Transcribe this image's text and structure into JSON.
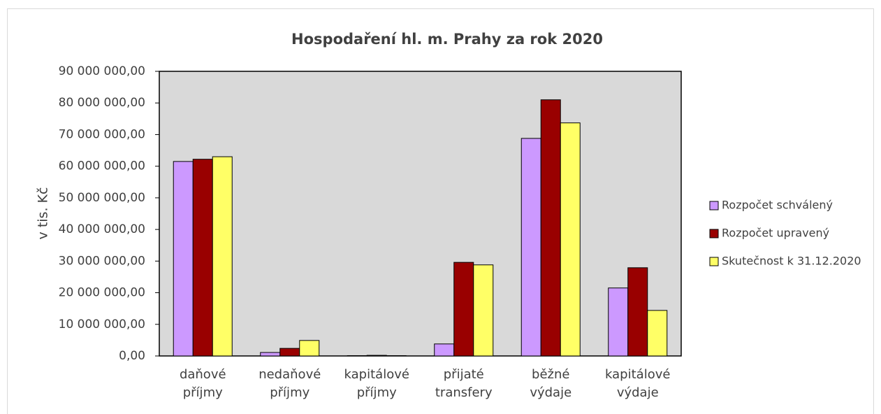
{
  "chart_data": {
    "type": "bar",
    "title": "Hospodaření hl. m. Prahy za rok 2020",
    "y_label": "v tis. Kč",
    "categories": [
      [
        "daňové",
        "příjmy"
      ],
      [
        "nedaňové",
        "příjmy"
      ],
      [
        "kapitálové",
        "příjmy"
      ],
      [
        "přijaté",
        "transfery"
      ],
      [
        "běžné",
        "výdaje"
      ],
      [
        "kapitálové",
        "výdaje"
      ]
    ],
    "series": [
      {
        "name": "Rozpočet schválený",
        "color": "#cc99ff",
        "values": [
          61500000,
          1100000,
          100000,
          3800000,
          68800000,
          21500000
        ]
      },
      {
        "name": "Rozpočet upravený",
        "color": "#990000",
        "values": [
          62200000,
          2400000,
          200000,
          29600000,
          81000000,
          27900000
        ]
      },
      {
        "name": "Skutečnost k 31.12.2020",
        "color": "#ffff66",
        "values": [
          63000000,
          4900000,
          100000,
          28800000,
          73700000,
          14400000
        ]
      }
    ],
    "ylim": [
      0,
      90000000
    ],
    "yticks": [
      {
        "value": 0,
        "label": "0,00"
      },
      {
        "value": 10000000,
        "label": "10 000 000,00"
      },
      {
        "value": 20000000,
        "label": "20 000 000,00"
      },
      {
        "value": 30000000,
        "label": "30 000 000,00"
      },
      {
        "value": 40000000,
        "label": "40 000 000,00"
      },
      {
        "value": 50000000,
        "label": "50 000 000,00"
      },
      {
        "value": 60000000,
        "label": "60 000 000,00"
      },
      {
        "value": 70000000,
        "label": "70 000 000,00"
      },
      {
        "value": 80000000,
        "label": "80 000 000,00"
      },
      {
        "value": 90000000,
        "label": "90 000 000,00"
      }
    ],
    "plot_background": "#d9d9d9",
    "legend": "right"
  }
}
